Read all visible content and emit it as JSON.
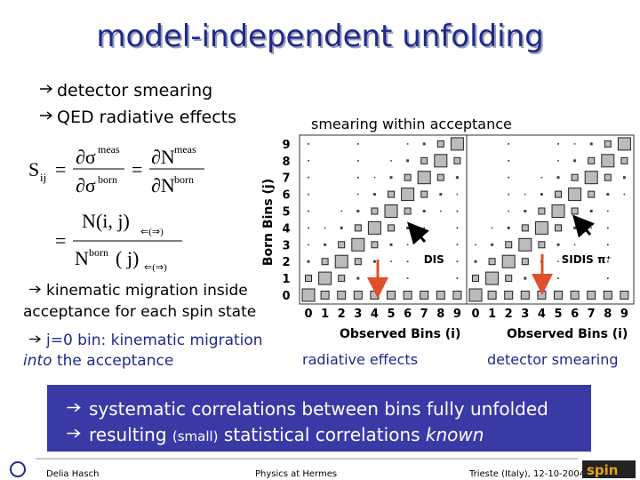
{
  "header": {
    "title": "model-independent unfolding"
  },
  "bullets_top": [
    "detector smearing",
    "QED radiative effects"
  ],
  "formula": {
    "s": "S",
    "ij": "ij",
    "eq": "=",
    "d_sigma": "∂σ",
    "d_n": "∂N",
    "meas": "meas",
    "born": "born",
    "n_ij": "N(i, j)",
    "n": "N",
    "j": "( j)",
    "sub": "⇐(⇒)"
  },
  "matrix": {
    "title": "smearing within acceptance",
    "y_label": "Born Bins (j)",
    "y_ticks": [
      "0",
      "1",
      "2",
      "3",
      "4",
      "5",
      "6",
      "7",
      "8",
      "9"
    ],
    "panels": [
      {
        "label": "DIS",
        "x_label": "Observed Bins (i)",
        "x_ticks": [
          "0",
          "1",
          "2",
          "3",
          "4",
          "5",
          "6",
          "7",
          "8",
          "9"
        ]
      },
      {
        "label": "SIDIS π⁺",
        "x_label": "Observed Bins (i)",
        "x_ticks": [
          "0",
          "1",
          "2",
          "3",
          "4",
          "5",
          "6",
          "7",
          "8",
          "9"
        ]
      }
    ]
  },
  "annotations": [
    "radiative effects",
    "detector smearing"
  ],
  "bullets_mid": [
    {
      "lines": [
        "kinematic migration inside",
        "acceptance for each spin state"
      ]
    },
    {
      "first": "j=0 bin: kinematic migration",
      "italic": "into",
      "rest": " the acceptance"
    }
  ],
  "box": {
    "line1": "systematic correlations between bins fully unfolded",
    "line2": {
      "a": "resulting ",
      "small": "(small)",
      "b": " statistical correlations ",
      "italic": "known"
    }
  },
  "footer": {
    "author": "Delia Hasch",
    "talk": "Physics at Hermes",
    "place": "Trieste (Italy), 12-10-2004",
    "logo": "spin"
  }
}
